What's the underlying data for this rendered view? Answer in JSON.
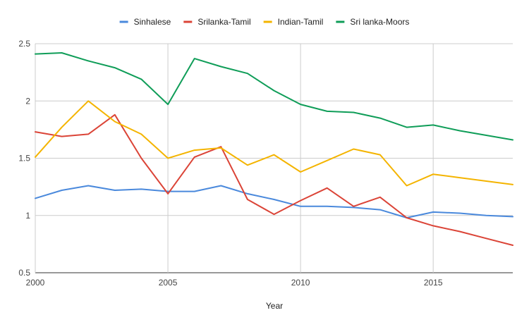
{
  "chart_data": {
    "type": "line",
    "title": "",
    "xlabel": "Year",
    "ylabel": "",
    "xlim": [
      2000,
      2018
    ],
    "ylim": [
      0.5,
      2.5
    ],
    "x_ticks": [
      2000,
      2005,
      2010,
      2015
    ],
    "y_ticks": [
      0.5,
      1,
      1.5,
      2,
      2.5
    ],
    "grid": true,
    "legend_position": "top",
    "x": [
      2000,
      2001,
      2002,
      2003,
      2004,
      2005,
      2006,
      2007,
      2008,
      2009,
      2010,
      2011,
      2012,
      2013,
      2014,
      2015,
      2016,
      2017,
      2018
    ],
    "series": [
      {
        "name": "Sinhalese",
        "color": "#4a89dc",
        "values": [
          1.15,
          1.22,
          1.26,
          1.22,
          1.23,
          1.21,
          1.21,
          1.26,
          1.19,
          1.14,
          1.08,
          1.08,
          1.07,
          1.05,
          0.98,
          1.03,
          1.02,
          1.0,
          0.99
        ]
      },
      {
        "name": "Srilanka-Tamil",
        "color": "#db4437",
        "values": [
          1.73,
          1.69,
          1.71,
          1.88,
          1.5,
          1.19,
          1.51,
          1.6,
          1.14,
          1.01,
          1.13,
          1.24,
          1.08,
          1.16,
          0.98,
          0.91,
          0.86,
          0.8,
          0.74
        ]
      },
      {
        "name": "Indian-Tamil",
        "color": "#f4b400",
        "values": [
          1.51,
          1.77,
          2.0,
          1.82,
          1.71,
          1.5,
          1.57,
          1.59,
          1.44,
          1.53,
          1.38,
          1.48,
          1.58,
          1.53,
          1.26,
          1.36,
          1.33,
          1.3,
          1.27
        ]
      },
      {
        "name": "Sri lanka-Moors",
        "color": "#0f9d58",
        "values": [
          2.41,
          2.42,
          2.35,
          2.29,
          2.19,
          1.97,
          2.37,
          2.3,
          2.24,
          2.09,
          1.97,
          1.91,
          1.9,
          1.85,
          1.77,
          1.79,
          1.74,
          1.7,
          1.66
        ]
      }
    ]
  }
}
